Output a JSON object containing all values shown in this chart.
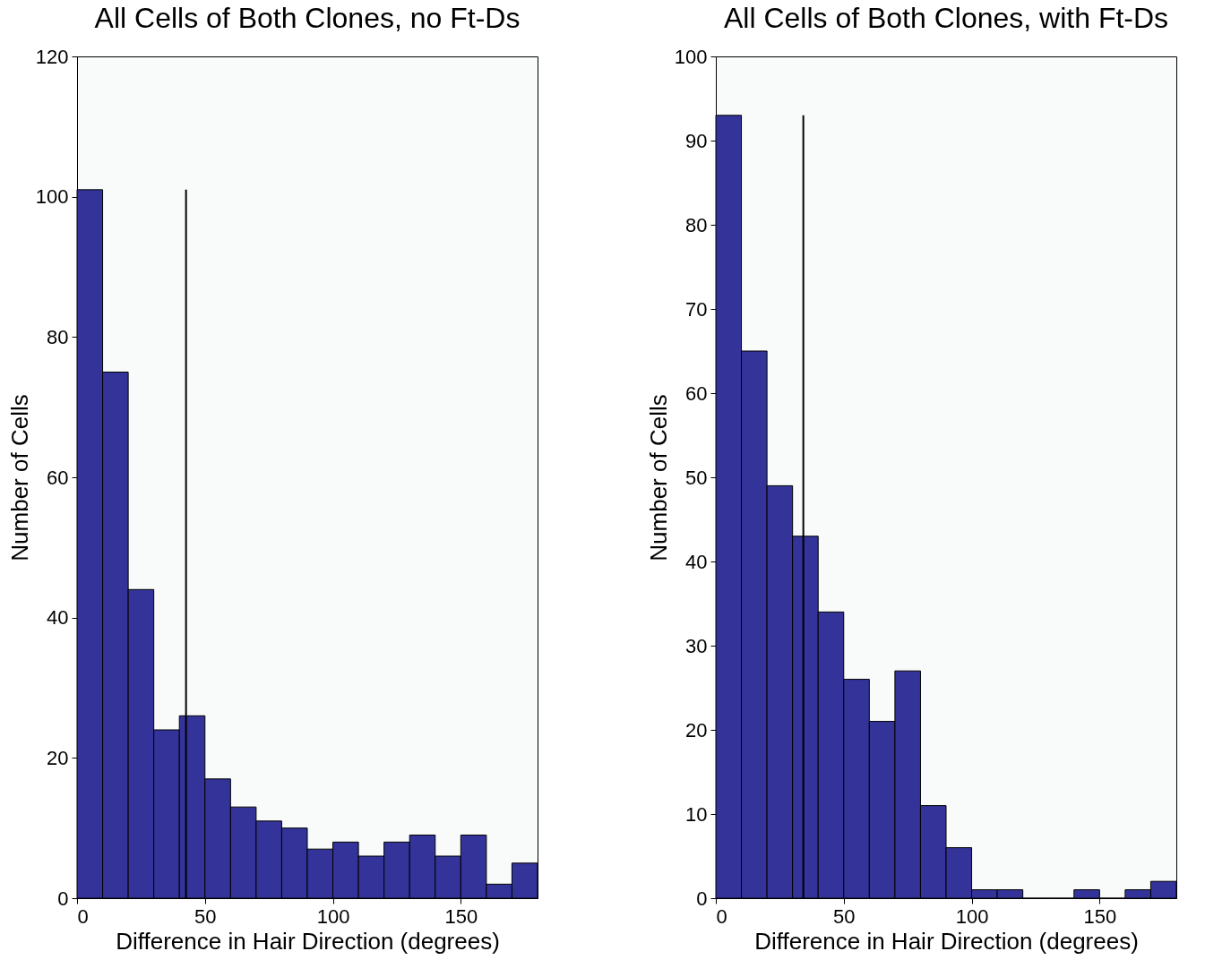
{
  "chart_data": [
    {
      "type": "histogram",
      "title": "All Cells of Both Clones, no Ft-Ds",
      "xlabel": "Difference in Hair Direction (degrees)",
      "ylabel": "Number of Cells",
      "bins": [
        0,
        10,
        20,
        30,
        40,
        50,
        60,
        70,
        80,
        90,
        100,
        110,
        120,
        130,
        140,
        150,
        160,
        170,
        180
      ],
      "values": [
        101,
        75,
        44,
        24,
        26,
        17,
        13,
        11,
        10,
        7,
        8,
        6,
        8,
        9,
        6,
        9,
        2,
        5
      ],
      "color": "#333399",
      "xlim": [
        0,
        180
      ],
      "xticks": [
        0,
        50,
        100,
        150
      ],
      "ylim": [
        0,
        120
      ],
      "yticks": [
        0,
        20,
        40,
        60,
        80,
        100,
        120
      ],
      "ref_lines": [
        {
          "axis": "x",
          "value": 42.6,
          "color": "#000000"
        }
      ]
    },
    {
      "type": "histogram",
      "title": "All Cells of Both Clones, with Ft-Ds",
      "xlabel": "Difference in Hair Direction (degrees)",
      "ylabel": "Number of Cells",
      "bins": [
        0,
        10,
        20,
        30,
        40,
        50,
        60,
        70,
        80,
        90,
        100,
        110,
        120,
        130,
        140,
        150,
        160,
        170,
        180
      ],
      "values": [
        93,
        65,
        49,
        43,
        34,
        26,
        21,
        27,
        11,
        6,
        1,
        1,
        0,
        0,
        1,
        0,
        1,
        2
      ],
      "color": "#333399",
      "xlim": [
        0,
        180
      ],
      "xticks": [
        0,
        50,
        100,
        150
      ],
      "ylim": [
        0,
        100
      ],
      "yticks": [
        0,
        10,
        20,
        30,
        40,
        50,
        60,
        70,
        80,
        90,
        100
      ],
      "ref_lines": [
        {
          "axis": "x",
          "value": 34.2,
          "color": "#000000"
        }
      ]
    }
  ]
}
